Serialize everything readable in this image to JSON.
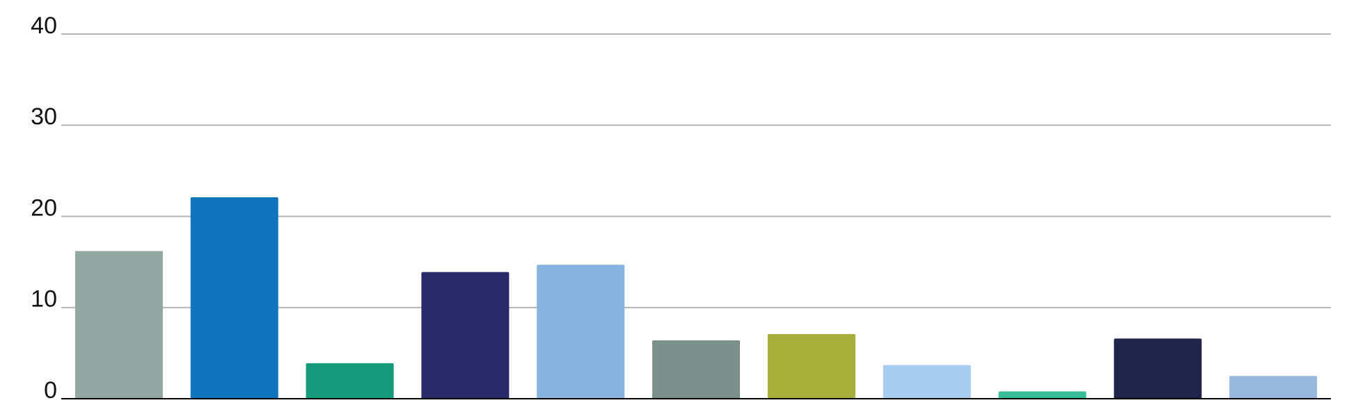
{
  "chart_data": {
    "type": "bar",
    "categories": [
      null,
      null,
      null,
      null,
      null,
      null,
      null,
      null,
      null,
      null,
      null
    ],
    "values": [
      16.2,
      22.1,
      3.9,
      13.9,
      14.7,
      6.4,
      7.1,
      3.7,
      0.8,
      6.6,
      2.5
    ],
    "colors": [
      "#93a6a2",
      "#1075bd",
      "#159b7b",
      "#292a69",
      "#88b4e0",
      "#7b908b",
      "#a7af3a",
      "#a8cdef",
      "#36bf99",
      "#1f244b",
      "#98b9dd"
    ],
    "ylim": [
      0,
      40
    ],
    "yticks": [
      0,
      10,
      20,
      30,
      40
    ],
    "grid": true
  }
}
